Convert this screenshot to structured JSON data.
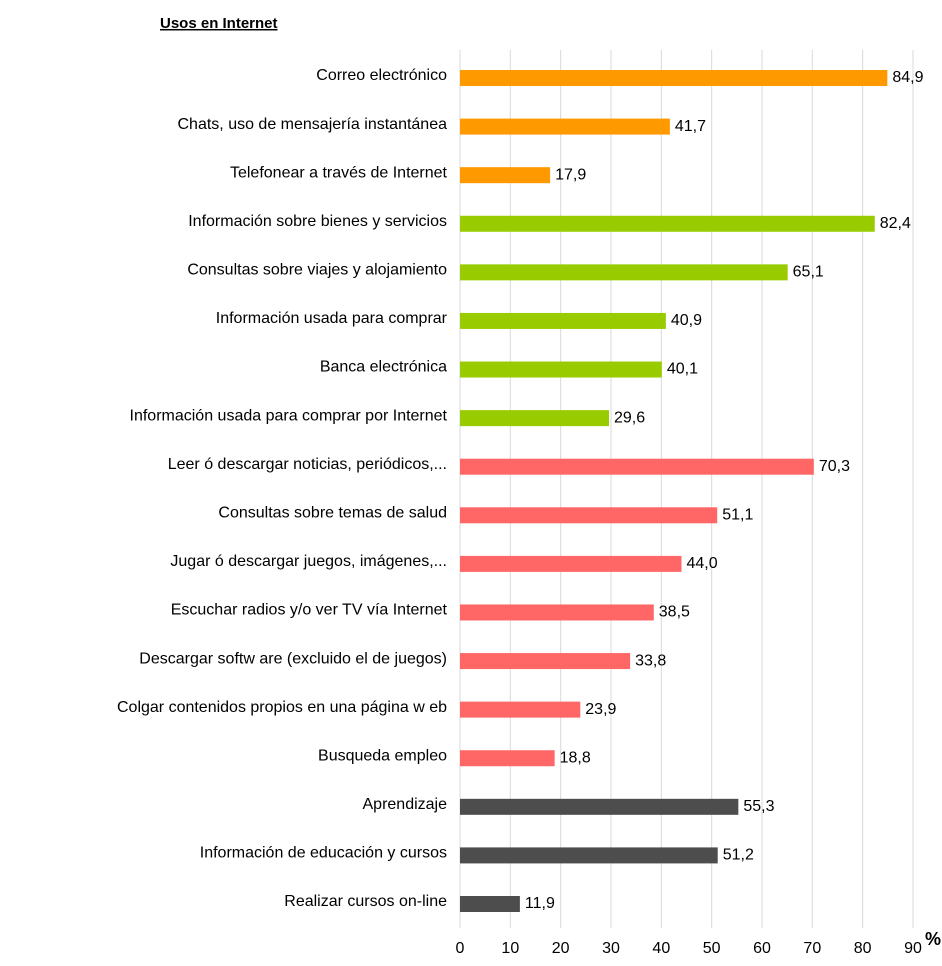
{
  "chart_data": {
    "type": "bar",
    "orientation": "horizontal",
    "title": "Usos en Internet",
    "x_label": "%",
    "categories": [
      "Correo electrónico",
      "Chats, uso de mensajería instantánea",
      "Telefonear a través de Internet",
      "Información sobre bienes y servicios",
      "Consultas sobre viajes y alojamiento",
      "Información usada para comprar",
      "Banca electrónica",
      "Información usada para comprar por Internet",
      "Leer ó descargar noticias, periódicos,...",
      "Consultas sobre temas de salud",
      "Jugar ó descargar juegos, imágenes,...",
      "Escuchar radios y/o ver TV  vía Internet",
      "Descargar softw are (excluido el de juegos)",
      "Colgar contenidos propios en una página w eb",
      "Busqueda empleo",
      "Aprendizaje",
      "Información de educación y cursos",
      "Realizar cursos on-line"
    ],
    "values": [
      84.9,
      41.7,
      17.9,
      82.4,
      65.1,
      40.9,
      40.1,
      29.6,
      70.3,
      51.1,
      44.0,
      38.5,
      33.8,
      23.9,
      18.8,
      55.3,
      51.2,
      11.9
    ],
    "value_labels": [
      "84,9",
      "41,7",
      "17,9",
      "82,4",
      "65,1",
      "40,9",
      "40,1",
      "29,6",
      "70,3",
      "51,1",
      "44,0",
      "38,5",
      "33,8",
      "23,9",
      "18,8",
      "55,3",
      "51,2",
      "11,9"
    ],
    "colors": [
      "#FF9900",
      "#FF9900",
      "#FF9900",
      "#99CC00",
      "#99CC00",
      "#99CC00",
      "#99CC00",
      "#99CC00",
      "#FF6666",
      "#FF6666",
      "#FF6666",
      "#FF6666",
      "#FF6666",
      "#FF6666",
      "#FF6666",
      "#4D4D4D",
      "#4D4D4D",
      "#4D4D4D"
    ],
    "xlim": [
      0,
      90
    ],
    "xticks": [
      0,
      10,
      20,
      30,
      40,
      50,
      60,
      70,
      80,
      90
    ],
    "grid": true
  }
}
